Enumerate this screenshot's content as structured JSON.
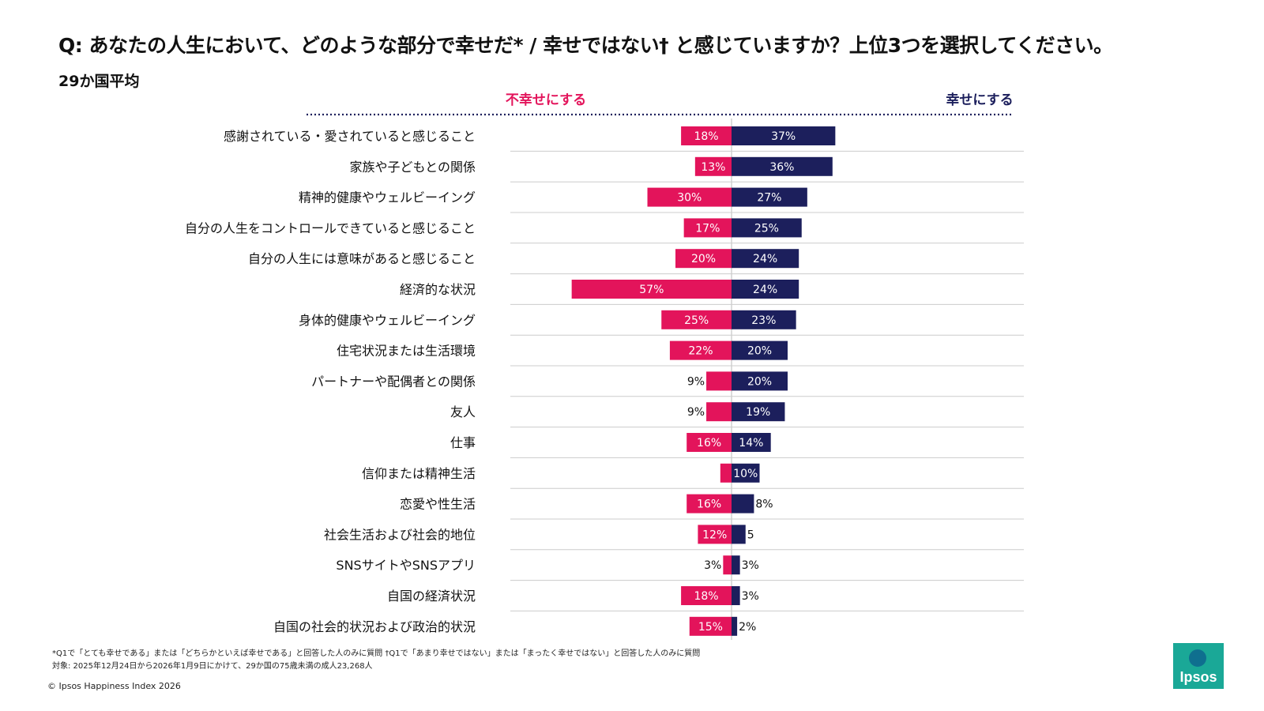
{
  "header": {
    "title": "Q: あなたの人生において、どのような部分で幸せだ* / 幸せではない† と感じていますか？上位3つを選択してください。",
    "subtitle": "29か国平均"
  },
  "colors": {
    "unhappy": "#e3145b",
    "happy": "#1c1f5c",
    "text": "#111111",
    "divider": "#cccccc"
  },
  "chart_data": {
    "type": "bar",
    "orientation": "horizontal-diverging",
    "legend": {
      "left_label": "不幸せにする",
      "right_label": "幸せにする"
    },
    "categories": [
      "感謝されている・愛されていると感じること",
      "家族や子どもとの関係",
      "精神的健康やウェルビーイング",
      "自分の人生をコントロールできていると感じること",
      "自分の人生には意味があると感じること",
      "経済的な状況",
      "身体的健康やウェルビーイング",
      "住宅状況または生活環境",
      "パートナーや配偶者との関係",
      "友人",
      "仕事",
      "信仰または精神生活",
      "恋愛や性生活",
      "社会生活および社会的地位",
      "SNSサイトやSNSアプリ",
      "自国の経済状況",
      "自国の社会的状況および政治的状況"
    ],
    "series": [
      {
        "name": "不幸せにする",
        "values": [
          18,
          13,
          30,
          17,
          20,
          57,
          25,
          22,
          9,
          9,
          16,
          4,
          16,
          12,
          3,
          18,
          15
        ],
        "labels": [
          "18%",
          "13%",
          "30%",
          "17%",
          "20%",
          "57%",
          "25%",
          "22%",
          "9%",
          "9%",
          "16%",
          "",
          "16%",
          "12%",
          "3%",
          "18%",
          "15%"
        ]
      },
      {
        "name": "幸せにする",
        "values": [
          37,
          36,
          27,
          25,
          24,
          24,
          23,
          20,
          20,
          19,
          14,
          10,
          8,
          5,
          3,
          3,
          2
        ],
        "labels": [
          "37%",
          "36%",
          "27%",
          "25%",
          "24%",
          "24%",
          "23%",
          "20%",
          "20%",
          "19%",
          "14%",
          "10%",
          "8%",
          "5",
          "3%",
          "3%",
          "2%"
        ]
      }
    ]
  },
  "footer": {
    "footnote1": "*Q1で「とても幸せである」または「どちらかといえば幸せである」と回答した人のみに質問 †Q1で「あまり幸せではない」または「まったく幸せではない」と回答した人のみに質問",
    "footnote2": "対象: 2025年12月24日から2026年1月9日にかけて、29か国の75歳未満の成人23,268人",
    "copyright": "© Ipsos Happiness Index 2026"
  },
  "logo": {
    "text": "Ipsos"
  }
}
